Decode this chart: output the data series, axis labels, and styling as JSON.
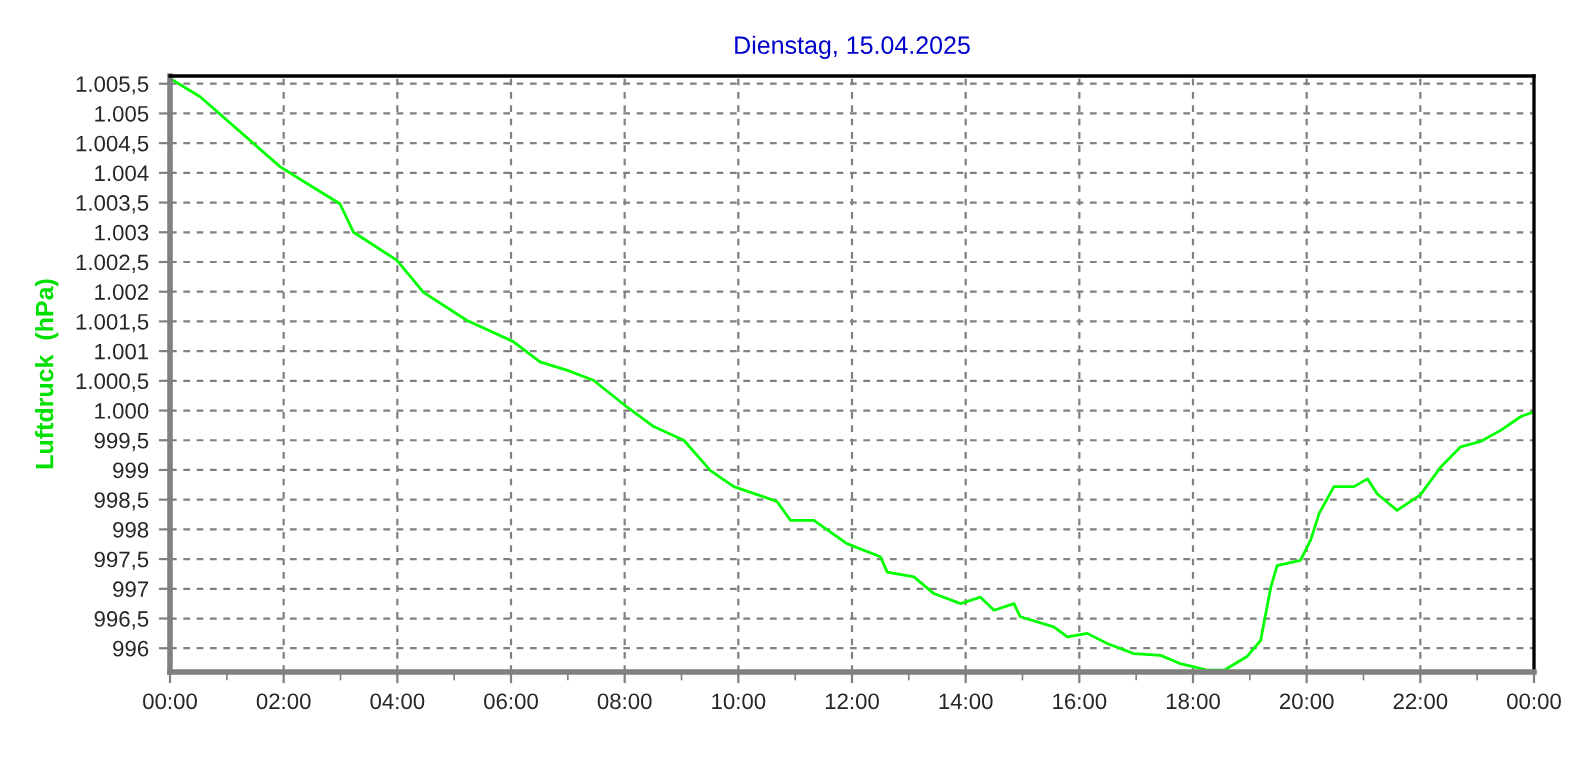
{
  "chart_data": {
    "type": "line",
    "title": "Dienstag, 15.04.2025",
    "ylabel": "Luftdruck  (hPa)",
    "x": [
      0,
      0.53,
      1.94,
      2.41,
      2.99,
      3.23,
      3.99,
      4.46,
      5.22,
      6.04,
      6.51,
      6.98,
      7.45,
      8.04,
      8.51,
      9.04,
      9.51,
      9.92,
      10.68,
      10.92,
      11.33,
      11.91,
      12.5,
      12.62,
      13.09,
      13.44,
      13.91,
      14.26,
      14.5,
      14.85,
      14.96,
      15.55,
      15.79,
      16.14,
      16.49,
      16.96,
      17.43,
      17.78,
      18.25,
      18.55,
      18.95,
      19.19,
      19.37,
      19.48,
      19.89,
      20.07,
      20.22,
      20.48,
      20.83,
      21.07,
      21.24,
      21.59,
      22.0,
      22.36,
      22.71,
      23.06,
      23.42,
      23.77,
      24.0
    ],
    "series": [
      {
        "color": "#00ff00",
        "values": [
          1005.59,
          1005.28,
          1004.1,
          1003.82,
          1003.48,
          1003.0,
          1002.53,
          1001.99,
          1001.52,
          1001.16,
          1000.82,
          1000.68,
          1000.51,
          1000.06,
          999.73,
          999.5,
          998.99,
          998.72,
          998.47,
          998.15,
          998.15,
          997.76,
          997.54,
          997.28,
          997.2,
          996.92,
          996.75,
          996.86,
          996.64,
          996.75,
          996.53,
          996.36,
          996.19,
          996.25,
          996.08,
          995.91,
          995.88,
          995.74,
          995.63,
          995.63,
          995.86,
          996.13,
          997.03,
          997.39,
          997.48,
          997.82,
          998.27,
          998.72,
          998.72,
          998.85,
          998.6,
          998.32,
          998.58,
          999.05,
          999.39,
          999.48,
          999.67,
          999.9,
          999.98
        ]
      }
    ],
    "xlim": [
      0,
      24
    ],
    "ylim": [
      995.6,
      1005.63
    ],
    "xticks": [
      {
        "value": 0,
        "label": "00:00"
      },
      {
        "value": 1,
        "label": null
      },
      {
        "value": 2,
        "label": "02:00"
      },
      {
        "value": 3,
        "label": null
      },
      {
        "value": 4,
        "label": "04:00"
      },
      {
        "value": 5,
        "label": null
      },
      {
        "value": 6,
        "label": "06:00"
      },
      {
        "value": 7,
        "label": null
      },
      {
        "value": 8,
        "label": "08:00"
      },
      {
        "value": 9,
        "label": null
      },
      {
        "value": 10,
        "label": "10:00"
      },
      {
        "value": 11,
        "label": null
      },
      {
        "value": 12,
        "label": "12:00"
      },
      {
        "value": 13,
        "label": null
      },
      {
        "value": 14,
        "label": "14:00"
      },
      {
        "value": 15,
        "label": null
      },
      {
        "value": 16,
        "label": "16:00"
      },
      {
        "value": 17,
        "label": null
      },
      {
        "value": 18,
        "label": "18:00"
      },
      {
        "value": 19,
        "label": null
      },
      {
        "value": 20,
        "label": "20:00"
      },
      {
        "value": 21,
        "label": null
      },
      {
        "value": 22,
        "label": "22:00"
      },
      {
        "value": 23,
        "label": null
      },
      {
        "value": 24,
        "label": "00:00"
      }
    ],
    "yticks": [
      {
        "value": 996,
        "label": "996"
      },
      {
        "value": 996.5,
        "label": "996,5"
      },
      {
        "value": 997,
        "label": "997"
      },
      {
        "value": 997.5,
        "label": "997,5"
      },
      {
        "value": 998,
        "label": "998"
      },
      {
        "value": 998.5,
        "label": "998,5"
      },
      {
        "value": 999,
        "label": "999"
      },
      {
        "value": 999.5,
        "label": "999,5"
      },
      {
        "value": 1000,
        "label": "1.000"
      },
      {
        "value": 1000.5,
        "label": "1.000,5"
      },
      {
        "value": 1001,
        "label": "1.001"
      },
      {
        "value": 1001.5,
        "label": "1.001,5"
      },
      {
        "value": 1002,
        "label": "1.002"
      },
      {
        "value": 1002.5,
        "label": "1.002,5"
      },
      {
        "value": 1003,
        "label": "1.003"
      },
      {
        "value": 1003.5,
        "label": "1.003,5"
      },
      {
        "value": 1004,
        "label": "1.004"
      },
      {
        "value": 1004.5,
        "label": "1.004,5"
      },
      {
        "value": 1005,
        "label": "1.005"
      },
      {
        "value": 1005.5,
        "label": "1.005,5"
      }
    ],
    "grid": true,
    "line_style": "solid"
  }
}
